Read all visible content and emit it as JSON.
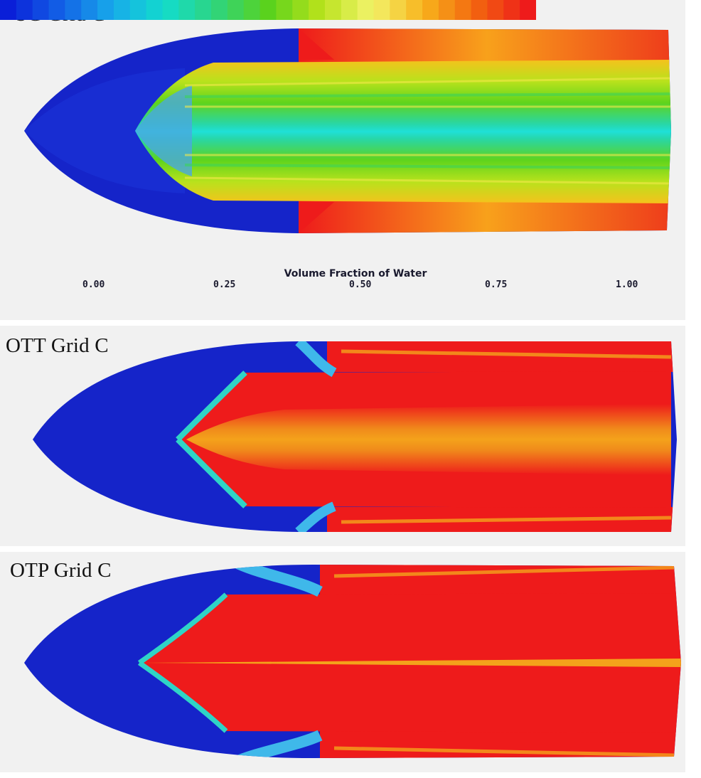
{
  "panels": [
    {
      "id": "sg",
      "title": "SG Grid C",
      "pattern": "green-core"
    },
    {
      "id": "ott",
      "title": "OTT Grid C",
      "pattern": "red-orange-core"
    },
    {
      "id": "otp",
      "title": "OTP Grid C",
      "pattern": "red-core"
    }
  ],
  "legend": {
    "title": "Volume Fraction of Water",
    "ticks": [
      "0.00",
      "0.25",
      "0.50",
      "0.75",
      "1.00"
    ],
    "range": [
      0,
      1
    ],
    "colors": [
      "#0a1fd8",
      "#1360e6",
      "#18a9ea",
      "#12dccd",
      "#2fd47c",
      "#5ad21d",
      "#b7e21b",
      "#f2f36b",
      "#f8b21b",
      "#f2640f",
      "#ee1b1b"
    ]
  },
  "colors": {
    "water_low": "#1524c9",
    "water_high": "#ee1b1b",
    "background": "#f1f1f1"
  }
}
